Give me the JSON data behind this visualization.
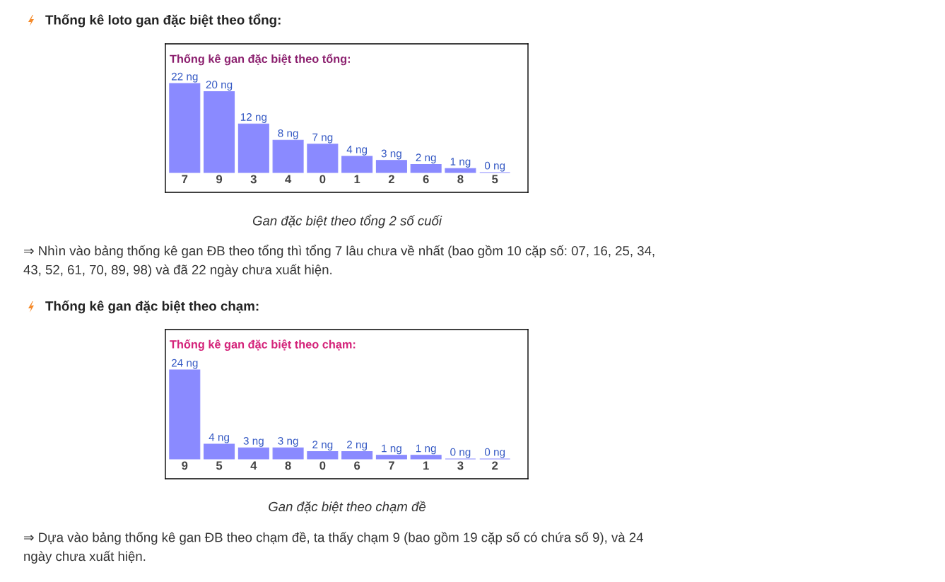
{
  "chart_data": [
    {
      "type": "bar",
      "title": "Thống kê gan đặc biệt theo tổng:",
      "categories": [
        "7",
        "9",
        "3",
        "4",
        "0",
        "1",
        "2",
        "6",
        "8",
        "5"
      ],
      "values": [
        22,
        20,
        12,
        8,
        7,
        4,
        3,
        2,
        1,
        0
      ],
      "value_labels": [
        "22 ng",
        "20 ng",
        "12 ng",
        "8 ng",
        "7 ng",
        "4 ng",
        "3 ng",
        "2 ng",
        "1 ng",
        "0 ng"
      ],
      "color": "#8a8aff",
      "annotations": [
        "Thống kê loto gan đặc biệt theo tổng:",
        "Gan đặc biệt theo tổng 2 số cuối",
        "⇒ Nhìn vào bảng thống kê gan ĐB theo tổng thì tổng 7 lâu chưa về nhất (bao gồm 10 cặp số: 07, 16, 25, 34, 43, 52, 61, 70, 89, 98) và đã 22 ngày chưa xuất hiện."
      ]
    },
    {
      "type": "bar",
      "title": "Thống kê gan đặc biệt theo chạm:",
      "categories": [
        "9",
        "5",
        "4",
        "8",
        "0",
        "6",
        "7",
        "1",
        "3",
        "2"
      ],
      "values": [
        24,
        4,
        3,
        3,
        2,
        2,
        1,
        1,
        0,
        0
      ],
      "value_labels": [
        "24 ng",
        "4 ng",
        "3 ng",
        "3 ng",
        "2 ng",
        "2 ng",
        "1 ng",
        "1 ng",
        "0 ng",
        "0 ng"
      ],
      "color": "#8a8aff",
      "annotations": [
        "Thống kê gan đặc biệt theo chạm:",
        "Gan đặc biệt theo chạm đề",
        "⇒ Dựa vào bảng thống kê gan ĐB theo chạm đề, ta thấy chạm 9 (bao gồm 19 cặp số có chứa số 9), và 24 ngày chưa xuất hiện."
      ]
    }
  ]
}
